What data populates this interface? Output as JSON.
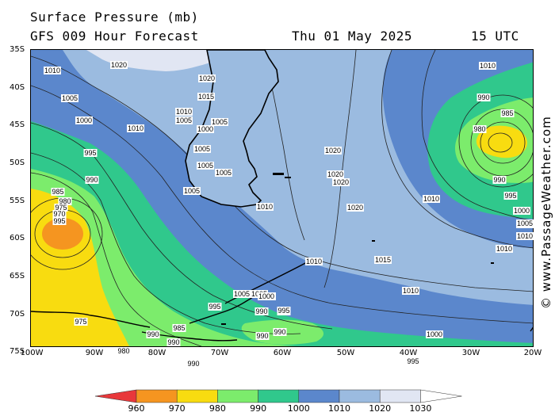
{
  "header": {
    "title": "Surface Pressure (mb)",
    "subtitle": "GFS 009 Hour Forecast",
    "date": "Thu 01 May 2025",
    "time": "15 UTC"
  },
  "axes": {
    "lat_labels": [
      "35S",
      "40S",
      "45S",
      "50S",
      "55S",
      "60S",
      "65S",
      "70S",
      "75S"
    ],
    "lon_labels": [
      "100W",
      "90W",
      "80W",
      "70W",
      "60W",
      "50W",
      "40W",
      "30W",
      "20W"
    ]
  },
  "watermark": "© www.PassageWeather.com",
  "legend": {
    "labels": [
      "960",
      "970",
      "980",
      "990",
      "1000",
      "1010",
      "1020",
      "1030"
    ],
    "colors": [
      "#e8383b",
      "#f59520",
      "#f8dc10",
      "#7cec6c",
      "#30c88c",
      "#5b87cc",
      "#9bbbe0",
      "#e1e6f3",
      "#ffffff"
    ]
  },
  "pressure_systems": {
    "low_west": "970",
    "low_east": "980"
  },
  "isobar_labels": [
    {
      "text": "1010"
    },
    {
      "text": "1020"
    },
    {
      "text": "1005"
    },
    {
      "text": "1000"
    },
    {
      "text": "1010"
    },
    {
      "text": "995"
    },
    {
      "text": "990"
    },
    {
      "text": "985"
    },
    {
      "text": "980"
    },
    {
      "text": "975"
    },
    {
      "text": "970"
    },
    {
      "text": "995"
    },
    {
      "text": "1020"
    },
    {
      "text": "1015"
    },
    {
      "text": "1010"
    },
    {
      "text": "1005"
    },
    {
      "text": "1000"
    },
    {
      "text": "1005"
    },
    {
      "text": "1005"
    },
    {
      "text": "1005"
    },
    {
      "text": "1005"
    },
    {
      "text": "1005"
    },
    {
      "text": "1010"
    },
    {
      "text": "1020"
    },
    {
      "text": "1020"
    },
    {
      "text": "1020"
    },
    {
      "text": "1020"
    },
    {
      "text": "1005"
    },
    {
      "text": "1000"
    },
    {
      "text": "995"
    },
    {
      "text": "990"
    },
    {
      "text": "985"
    },
    {
      "text": "980"
    },
    {
      "text": "990"
    },
    {
      "text": "995"
    },
    {
      "text": "1000"
    },
    {
      "text": "1005"
    },
    {
      "text": "1010"
    },
    {
      "text": "1010"
    },
    {
      "text": "1010"
    },
    {
      "text": "1015"
    },
    {
      "text": "1010"
    },
    {
      "text": "1010"
    },
    {
      "text": "1005"
    },
    {
      "text": "1000"
    },
    {
      "text": "995"
    },
    {
      "text": "990"
    },
    {
      "text": "990"
    },
    {
      "text": "995"
    },
    {
      "text": "990"
    },
    {
      "text": "1010"
    },
    {
      "text": "1005"
    },
    {
      "text": "1000"
    },
    {
      "text": "995"
    },
    {
      "text": "975"
    },
    {
      "text": "980"
    },
    {
      "text": "985"
    },
    {
      "text": "990"
    },
    {
      "text": "990"
    },
    {
      "text": "990"
    }
  ]
}
